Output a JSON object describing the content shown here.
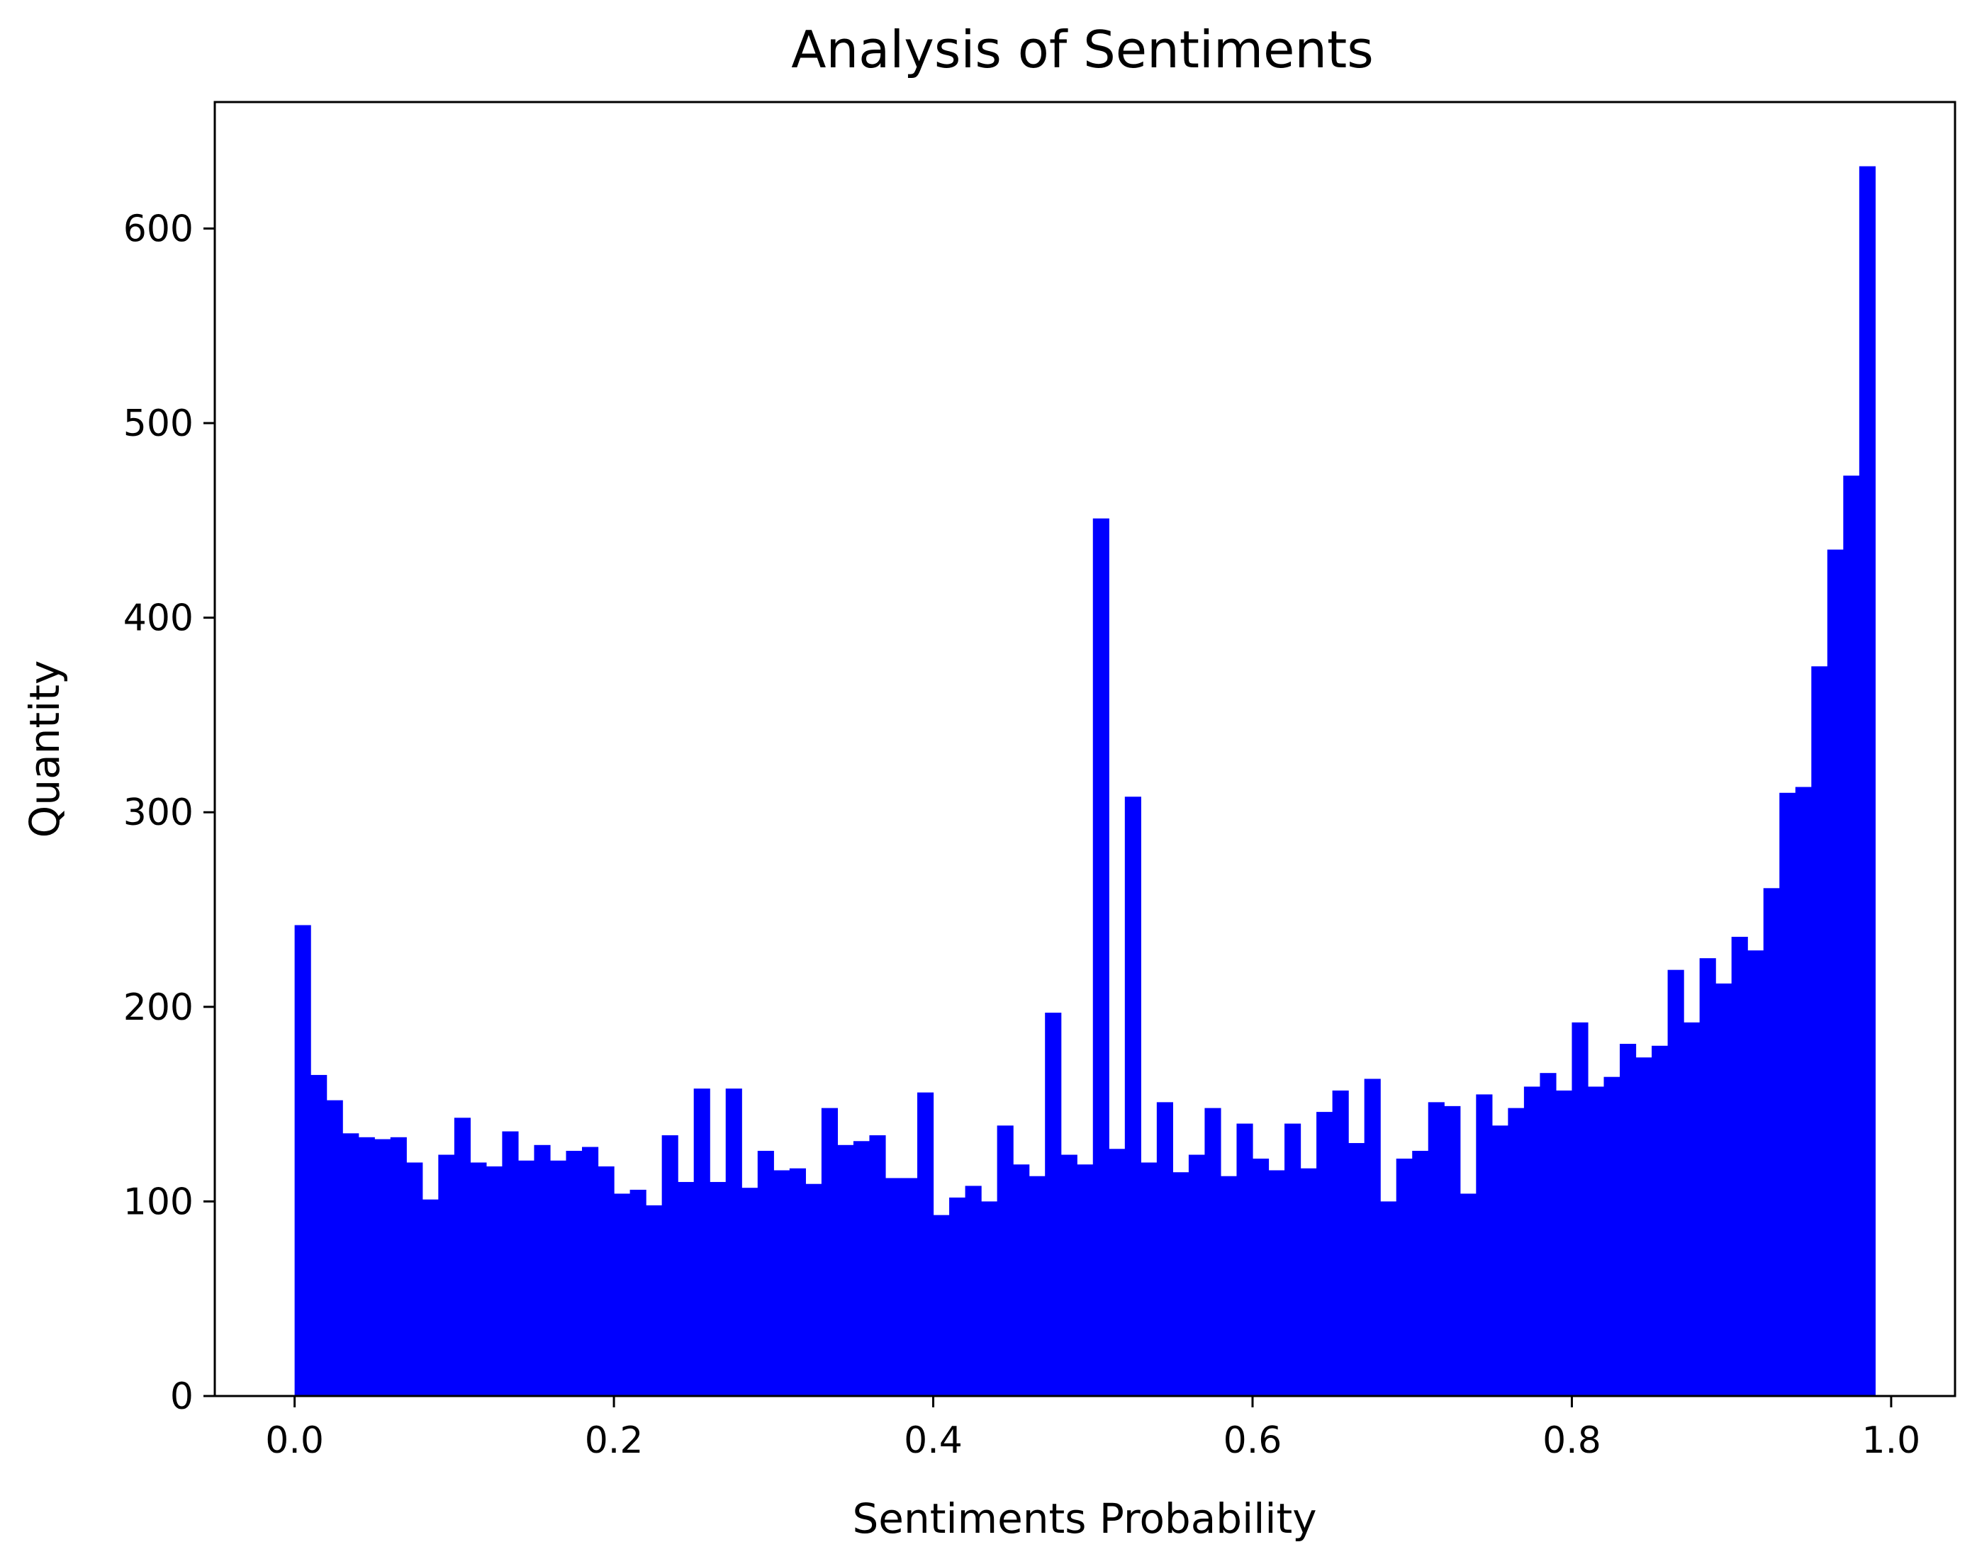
{
  "chart_data": {
    "type": "bar",
    "title": "Analysis of Sentiments",
    "xlabel": "Sentiments Probability",
    "ylabel": "Quantity",
    "xlim": [
      -0.05,
      1.04
    ],
    "ylim": [
      0,
      665
    ],
    "xticks": [
      0.0,
      0.2,
      0.4,
      0.6,
      0.8,
      1.0
    ],
    "xtick_labels": [
      "0.0",
      "0.2",
      "0.4",
      "0.6",
      "0.8",
      "1.0"
    ],
    "yticks": [
      0,
      100,
      200,
      300,
      400,
      500,
      600
    ],
    "ytick_labels": [
      "0",
      "100",
      "200",
      "300",
      "400",
      "500",
      "600"
    ],
    "bins": {
      "start": 0.0,
      "end": 0.99,
      "count": 99
    },
    "bar_color": "#0000ff",
    "grid": false,
    "legend": false,
    "values": [
      242,
      165,
      152,
      135,
      133,
      132,
      133,
      120,
      101,
      124,
      143,
      120,
      118,
      136,
      121,
      129,
      121,
      126,
      128,
      118,
      104,
      106,
      98,
      134,
      110,
      158,
      110,
      158,
      107,
      126,
      116,
      117,
      109,
      148,
      129,
      131,
      134,
      112,
      112,
      156,
      93,
      102,
      108,
      100,
      139,
      119,
      113,
      197,
      124,
      119,
      451,
      127,
      308,
      120,
      151,
      115,
      124,
      148,
      113,
      140,
      122,
      116,
      140,
      117,
      146,
      157,
      130,
      163,
      100,
      122,
      126,
      151,
      149,
      104,
      155,
      139,
      148,
      159,
      166,
      157,
      192,
      159,
      164,
      181,
      174,
      180,
      219,
      192,
      225,
      212,
      236,
      229,
      261,
      310,
      313,
      375,
      435,
      473,
      632
    ]
  }
}
